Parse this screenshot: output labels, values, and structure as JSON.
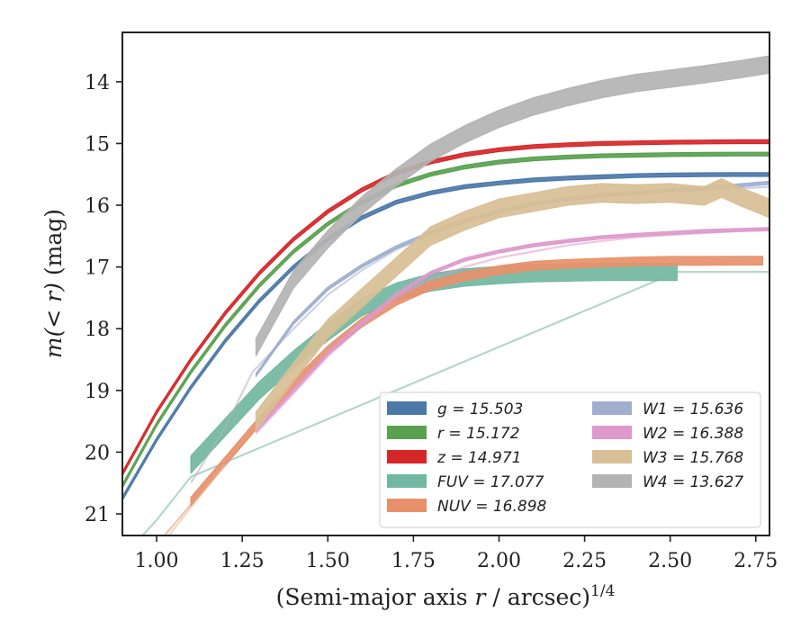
{
  "chart_data": {
    "type": "line",
    "title": "",
    "xlabel_main": "(Semi-major axis ",
    "xlabel_var": "r",
    "xlabel_rest": " / arcsec)",
    "xlabel_sup": "1/4",
    "ylabel_main": "m(< r)",
    "ylabel_unit": " (mag)",
    "xlim": [
      0.9,
      2.79
    ],
    "ylim": [
      21.35,
      13.2
    ],
    "x_ticks": [
      1.0,
      1.25,
      1.5,
      1.75,
      2.0,
      2.25,
      2.5,
      2.75
    ],
    "x_tick_labels": [
      "1.00",
      "1.25",
      "1.50",
      "1.75",
      "2.00",
      "2.25",
      "2.50",
      "2.75"
    ],
    "y_ticks": [
      14,
      15,
      16,
      17,
      18,
      19,
      20,
      21
    ],
    "y_tick_labels": [
      "14",
      "15",
      "16",
      "17",
      "18",
      "19",
      "20",
      "21"
    ],
    "legend_position": "lower-right",
    "legend_columns": 2,
    "series": [
      {
        "name": "g",
        "legend_label": "g = 15.503",
        "color": "#4c78a8",
        "width_mag": 0.06,
        "faint": [],
        "main": [
          [
            0.9,
            20.75
          ],
          [
            1.0,
            19.8
          ],
          [
            1.1,
            18.95
          ],
          [
            1.2,
            18.2
          ],
          [
            1.3,
            17.55
          ],
          [
            1.4,
            17.0
          ],
          [
            1.5,
            16.55
          ],
          [
            1.6,
            16.2
          ],
          [
            1.7,
            15.95
          ],
          [
            1.8,
            15.8
          ],
          [
            1.9,
            15.7
          ],
          [
            2.0,
            15.64
          ],
          [
            2.1,
            15.59
          ],
          [
            2.2,
            15.56
          ],
          [
            2.3,
            15.54
          ],
          [
            2.4,
            15.52
          ],
          [
            2.5,
            15.51
          ],
          [
            2.6,
            15.505
          ],
          [
            2.7,
            15.503
          ],
          [
            2.79,
            15.503
          ]
        ]
      },
      {
        "name": "r",
        "legend_label": "r = 15.172",
        "color": "#59a14f",
        "width_mag": 0.06,
        "faint": [],
        "main": [
          [
            0.9,
            20.55
          ],
          [
            1.0,
            19.55
          ],
          [
            1.1,
            18.7
          ],
          [
            1.2,
            17.95
          ],
          [
            1.3,
            17.3
          ],
          [
            1.4,
            16.75
          ],
          [
            1.5,
            16.3
          ],
          [
            1.6,
            15.95
          ],
          [
            1.7,
            15.68
          ],
          [
            1.8,
            15.5
          ],
          [
            1.9,
            15.38
          ],
          [
            2.0,
            15.3
          ],
          [
            2.1,
            15.25
          ],
          [
            2.2,
            15.22
          ],
          [
            2.3,
            15.2
          ],
          [
            2.4,
            15.19
          ],
          [
            2.5,
            15.18
          ],
          [
            2.6,
            15.175
          ],
          [
            2.7,
            15.172
          ],
          [
            2.79,
            15.172
          ]
        ]
      },
      {
        "name": "z",
        "legend_label": "z = 14.971",
        "color": "#d62728",
        "width_mag": 0.06,
        "faint": [],
        "main": [
          [
            0.9,
            20.35
          ],
          [
            1.0,
            19.35
          ],
          [
            1.1,
            18.5
          ],
          [
            1.2,
            17.75
          ],
          [
            1.3,
            17.1
          ],
          [
            1.4,
            16.55
          ],
          [
            1.5,
            16.1
          ],
          [
            1.6,
            15.75
          ],
          [
            1.7,
            15.48
          ],
          [
            1.8,
            15.3
          ],
          [
            1.9,
            15.18
          ],
          [
            2.0,
            15.1
          ],
          [
            2.1,
            15.05
          ],
          [
            2.2,
            15.02
          ],
          [
            2.3,
            15.0
          ],
          [
            2.4,
            14.99
          ],
          [
            2.5,
            14.98
          ],
          [
            2.6,
            14.975
          ],
          [
            2.7,
            14.971
          ],
          [
            2.79,
            14.971
          ]
        ]
      },
      {
        "name": "FUV",
        "legend_label": "FUV = 17.077",
        "color": "#72b7a1",
        "width_mag": 0.28,
        "faint": [
          [
            0.9,
            21.7
          ],
          [
            1.0,
            21.1
          ],
          [
            1.1,
            20.4
          ],
          [
            2.52,
            17.08
          ],
          [
            2.79,
            17.08
          ]
        ],
        "main": [
          [
            1.1,
            20.2
          ],
          [
            1.2,
            19.6
          ],
          [
            1.3,
            19.0
          ],
          [
            1.4,
            18.5
          ],
          [
            1.5,
            18.05
          ],
          [
            1.6,
            17.65
          ],
          [
            1.7,
            17.4
          ],
          [
            1.8,
            17.25
          ],
          [
            1.9,
            17.17
          ],
          [
            2.0,
            17.13
          ],
          [
            2.1,
            17.1
          ],
          [
            2.2,
            17.09
          ],
          [
            2.3,
            17.08
          ],
          [
            2.4,
            17.08
          ],
          [
            2.52,
            17.08
          ]
        ]
      },
      {
        "name": "NUV",
        "legend_label": "NUV = 16.898",
        "color": "#e8906a",
        "width_mag": 0.14,
        "faint": [
          [
            0.9,
            22.2
          ],
          [
            1.0,
            21.5
          ],
          [
            1.1,
            20.85
          ]
        ],
        "main": [
          [
            1.1,
            20.8
          ],
          [
            1.2,
            20.15
          ],
          [
            1.3,
            19.5
          ],
          [
            1.4,
            18.9
          ],
          [
            1.5,
            18.35
          ],
          [
            1.6,
            17.9
          ],
          [
            1.7,
            17.55
          ],
          [
            1.8,
            17.3
          ],
          [
            1.9,
            17.15
          ],
          [
            2.0,
            17.05
          ],
          [
            2.1,
            16.98
          ],
          [
            2.2,
            16.95
          ],
          [
            2.3,
            16.93
          ],
          [
            2.4,
            16.91
          ],
          [
            2.5,
            16.9
          ],
          [
            2.6,
            16.9
          ],
          [
            2.77,
            16.898
          ]
        ]
      },
      {
        "name": "W1",
        "legend_label": "W1 = 15.636",
        "color": "#a0aed0",
        "width_mag": 0.05,
        "faint": [
          [
            1.28,
            18.7
          ],
          [
            1.4,
            18.0
          ],
          [
            1.5,
            17.45
          ],
          [
            1.6,
            17.05
          ],
          [
            1.7,
            16.72
          ],
          [
            1.8,
            16.48
          ],
          [
            1.9,
            16.28
          ],
          [
            2.0,
            16.12
          ],
          [
            2.1,
            16.0
          ],
          [
            2.2,
            15.92
          ],
          [
            2.3,
            15.86
          ],
          [
            2.4,
            15.82
          ],
          [
            2.5,
            15.78
          ],
          [
            2.6,
            15.75
          ],
          [
            2.7,
            15.73
          ],
          [
            2.79,
            15.7
          ]
        ],
        "main": [
          [
            1.29,
            18.75
          ],
          [
            1.4,
            17.9
          ],
          [
            1.5,
            17.35
          ],
          [
            1.6,
            16.98
          ],
          [
            1.7,
            16.68
          ],
          [
            1.8,
            16.45
          ],
          [
            1.9,
            16.25
          ],
          [
            2.0,
            16.1
          ],
          [
            2.1,
            15.98
          ],
          [
            2.2,
            15.9
          ],
          [
            2.3,
            15.84
          ],
          [
            2.4,
            15.8
          ],
          [
            2.5,
            15.76
          ],
          [
            2.6,
            15.72
          ],
          [
            2.7,
            15.68
          ],
          [
            2.79,
            15.636
          ]
        ]
      },
      {
        "name": "W2",
        "legend_label": "W2 = 16.388",
        "color": "#dd99cc",
        "width_mag": 0.05,
        "faint": [
          [
            1.29,
            19.7
          ],
          [
            1.4,
            19.05
          ],
          [
            1.5,
            18.45
          ],
          [
            1.6,
            17.95
          ],
          [
            1.7,
            17.5
          ],
          [
            1.8,
            17.2
          ],
          [
            1.9,
            17.0
          ],
          [
            2.0,
            16.85
          ],
          [
            2.1,
            16.75
          ],
          [
            2.2,
            16.65
          ],
          [
            2.3,
            16.58
          ],
          [
            2.4,
            16.52
          ],
          [
            2.5,
            16.48
          ],
          [
            2.6,
            16.45
          ],
          [
            2.7,
            16.42
          ],
          [
            2.79,
            16.4
          ]
        ],
        "main": [
          [
            1.29,
            19.65
          ],
          [
            1.4,
            19.0
          ],
          [
            1.5,
            18.4
          ],
          [
            1.6,
            17.9
          ],
          [
            1.7,
            17.45
          ],
          [
            1.8,
            17.1
          ],
          [
            1.9,
            16.88
          ],
          [
            2.0,
            16.75
          ],
          [
            2.1,
            16.65
          ],
          [
            2.2,
            16.58
          ],
          [
            2.3,
            16.52
          ],
          [
            2.4,
            16.48
          ],
          [
            2.5,
            16.45
          ],
          [
            2.6,
            16.42
          ],
          [
            2.7,
            16.4
          ],
          [
            2.79,
            16.388
          ]
        ]
      },
      {
        "name": "W3",
        "legend_label": "W3 = 15.768",
        "color": "#d8bf95",
        "width_mag": 0.3,
        "faint": [
          [
            1.0,
            21.6
          ],
          [
            1.1,
            20.9
          ],
          [
            1.2,
            20.2
          ]
        ],
        "main": [
          [
            1.29,
            19.5
          ],
          [
            1.4,
            18.7
          ],
          [
            1.5,
            18.0
          ],
          [
            1.6,
            17.5
          ],
          [
            1.7,
            17.0
          ],
          [
            1.8,
            16.5
          ],
          [
            1.9,
            16.25
          ],
          [
            2.0,
            16.05
          ],
          [
            2.1,
            15.95
          ],
          [
            2.2,
            15.85
          ],
          [
            2.3,
            15.8
          ],
          [
            2.4,
            15.82
          ],
          [
            2.5,
            15.8
          ],
          [
            2.6,
            15.85
          ],
          [
            2.65,
            15.72
          ],
          [
            2.7,
            15.85
          ],
          [
            2.79,
            16.05
          ]
        ]
      },
      {
        "name": "W4",
        "legend_label": "W4 = 13.627",
        "color": "#b3b3b3",
        "width_mag": 0.28,
        "faint": [
          [
            1.1,
            20.5
          ],
          [
            1.2,
            19.6
          ],
          [
            1.28,
            18.7
          ]
        ],
        "main": [
          [
            1.29,
            18.3
          ],
          [
            1.4,
            17.2
          ],
          [
            1.5,
            16.55
          ],
          [
            1.6,
            16.0
          ],
          [
            1.7,
            15.55
          ],
          [
            1.8,
            15.15
          ],
          [
            1.9,
            14.85
          ],
          [
            2.0,
            14.6
          ],
          [
            2.1,
            14.4
          ],
          [
            2.2,
            14.25
          ],
          [
            2.3,
            14.12
          ],
          [
            2.4,
            14.02
          ],
          [
            2.5,
            13.95
          ],
          [
            2.6,
            13.88
          ],
          [
            2.7,
            13.8
          ],
          [
            2.79,
            13.72
          ]
        ]
      }
    ]
  }
}
